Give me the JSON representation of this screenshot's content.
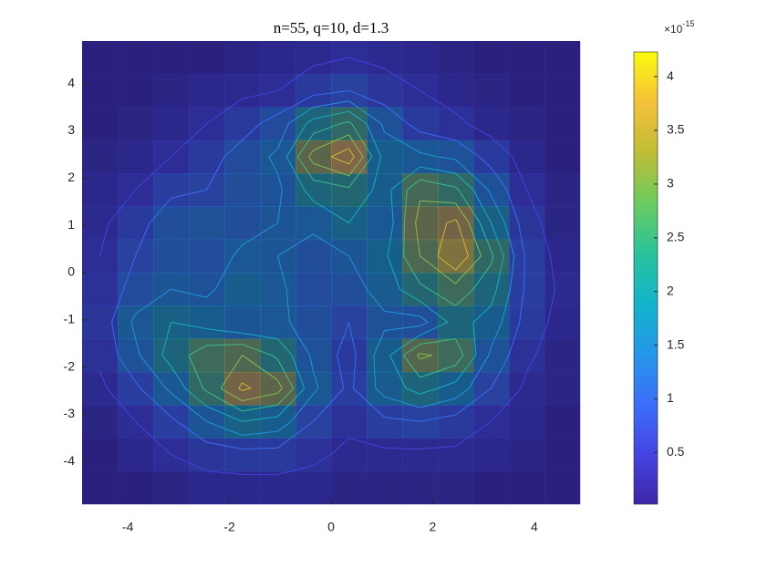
{
  "chart_data": {
    "type": "heatmap",
    "title": "n=55, q=10, d=1.3",
    "x": [
      -4.55,
      -3.85,
      -3.15,
      -2.45,
      -1.75,
      -1.05,
      -0.35,
      0.35,
      1.05,
      1.75,
      2.45,
      3.15,
      3.85,
      4.55
    ],
    "y": [
      4.55,
      3.85,
      3.15,
      2.45,
      1.75,
      1.05,
      0.35,
      -0.35,
      -1.05,
      -1.75,
      -2.45,
      -3.15,
      -3.85,
      -4.55
    ],
    "z": [
      [
        0.1,
        0.1,
        0.1,
        0.1,
        0.2,
        0.3,
        0.4,
        0.5,
        0.4,
        0.3,
        0.2,
        0.1,
        0.1,
        0.1
      ],
      [
        0.1,
        0.1,
        0.2,
        0.3,
        0.4,
        0.5,
        0.8,
        1.0,
        0.7,
        0.5,
        0.3,
        0.2,
        0.1,
        0.1
      ],
      [
        0.1,
        0.2,
        0.3,
        0.5,
        0.8,
        1.2,
        2.2,
        2.6,
        1.4,
        0.8,
        0.6,
        0.3,
        0.2,
        0.1
      ],
      [
        0.2,
        0.3,
        0.5,
        0.8,
        1.2,
        1.6,
        3.2,
        3.8,
        1.8,
        1.6,
        1.4,
        0.8,
        0.3,
        0.1
      ],
      [
        0.3,
        0.5,
        0.9,
        1.0,
        1.3,
        1.4,
        2.2,
        2.4,
        1.8,
        2.9,
        2.6,
        1.4,
        0.5,
        0.2
      ],
      [
        0.4,
        0.8,
        1.3,
        1.4,
        1.3,
        1.5,
        1.6,
        2.0,
        1.6,
        3.2,
        3.6,
        2.0,
        0.7,
        0.2
      ],
      [
        0.5,
        1.0,
        1.3,
        1.2,
        1.6,
        1.5,
        1.3,
        1.5,
        1.9,
        3.0,
        4.0,
        2.6,
        0.9,
        0.3
      ],
      [
        0.6,
        1.2,
        1.5,
        1.4,
        1.8,
        1.6,
        1.2,
        1.3,
        1.7,
        2.4,
        2.8,
        2.2,
        0.9,
        0.4
      ],
      [
        0.7,
        1.6,
        2.0,
        1.8,
        1.5,
        1.6,
        1.3,
        1.0,
        1.4,
        1.3,
        2.2,
        1.8,
        0.8,
        0.3
      ],
      [
        0.6,
        1.4,
        2.2,
        2.8,
        3.0,
        2.4,
        1.4,
        0.8,
        1.8,
        3.1,
        2.8,
        1.4,
        0.6,
        0.2
      ],
      [
        0.4,
        0.9,
        1.6,
        2.6,
        3.6,
        3.2,
        1.6,
        0.9,
        1.7,
        2.2,
        1.8,
        1.0,
        0.4,
        0.2
      ],
      [
        0.2,
        0.5,
        0.9,
        1.5,
        2.0,
        1.8,
        1.0,
        0.6,
        0.9,
        1.0,
        0.8,
        0.5,
        0.3,
        0.1
      ],
      [
        0.1,
        0.3,
        0.5,
        0.7,
        0.8,
        0.8,
        0.6,
        0.4,
        0.4,
        0.4,
        0.4,
        0.3,
        0.2,
        0.1
      ],
      [
        0.1,
        0.1,
        0.2,
        0.3,
        0.3,
        0.3,
        0.3,
        0.2,
        0.2,
        0.2,
        0.2,
        0.1,
        0.1,
        0.1
      ]
    ],
    "xlim": [
      -4.9,
      4.9
    ],
    "xticks": [
      -4,
      -2,
      0,
      2,
      4
    ],
    "ylim": [
      -4.9,
      4.9
    ],
    "yticks": [
      -4,
      -3,
      -2,
      -1,
      0,
      1,
      2,
      3,
      4
    ],
    "zlim": [
      0.02,
      4.23
    ],
    "zticks": [
      0.5,
      1,
      1.5,
      2,
      2.5,
      3,
      3.5,
      4
    ],
    "colorbar_exponent": {
      "base": "×10",
      "power": "-15"
    },
    "colormap": [
      "#3e26a8",
      "#4544e3",
      "#3b6ffb",
      "#2497e8",
      "#12b4cb",
      "#28c39a",
      "#6ccb5e",
      "#bfbd35",
      "#f6c03a",
      "#f9fb0e"
    ],
    "contours": true
  }
}
